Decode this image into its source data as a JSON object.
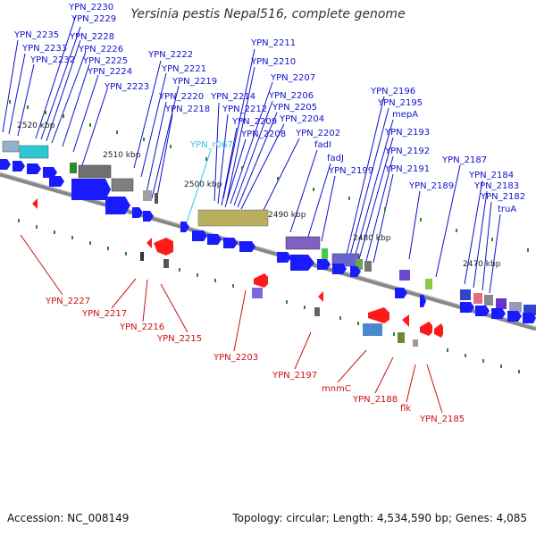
{
  "title": "Yersinia pestis Nepal516, complete genome",
  "footer": {
    "accession": "Accession: NC_008149",
    "topology": "Topology: circular; Length: 4,534,590 bp; Genes: 4,085"
  },
  "colors": {
    "forward_label": "#1010cc",
    "reverse_label": "#cc1010",
    "rna_label": "#33c3e6",
    "cds_arrow": "#1a1aff",
    "reverse_arrow": "#ff1a1a",
    "backbone": "#888888",
    "tick": "#2a8a2a"
  },
  "scale_ticks": [
    "2520 kbp",
    "2510 kbp",
    "2500 kbp",
    "2490 kbp",
    "2480 kbp",
    "2470 kbp"
  ],
  "forward_labels": [
    "YPN_2230",
    "YPN_2229",
    "YPN_2235",
    "YPN_2228",
    "YPN_2233",
    "YPN_2226",
    "YPN_2232",
    "YPN_2225",
    "YPN_2224",
    "YPN_2223",
    "YPN_2222",
    "YPN_2221",
    "YPN_2219",
    "YPN_2220",
    "YPN_2218",
    "YPN_2211",
    "YPN_2210",
    "YPN_2207",
    "YPN_2214",
    "YPN_2206",
    "YPN_2212",
    "YPN_2205",
    "YPN_2209",
    "YPN_2204",
    "YPN_2208",
    "YPN_2202",
    "YPN_r067",
    "fadI",
    "fadJ",
    "YPN_2199",
    "YPN_2196",
    "YPN_2195",
    "mepA",
    "YPN_2193",
    "YPN_2192",
    "YPN_2191",
    "YPN_2189",
    "YPN_2187",
    "YPN_2184",
    "YPN_2183",
    "YPN_2182",
    "truA"
  ],
  "reverse_labels": [
    "YPN_2227",
    "YPN_2217",
    "YPN_2216",
    "YPN_2215",
    "YPN_2203",
    "YPN_2197",
    "mnmC",
    "YPN_2188",
    "flk",
    "YPN_2185"
  ]
}
